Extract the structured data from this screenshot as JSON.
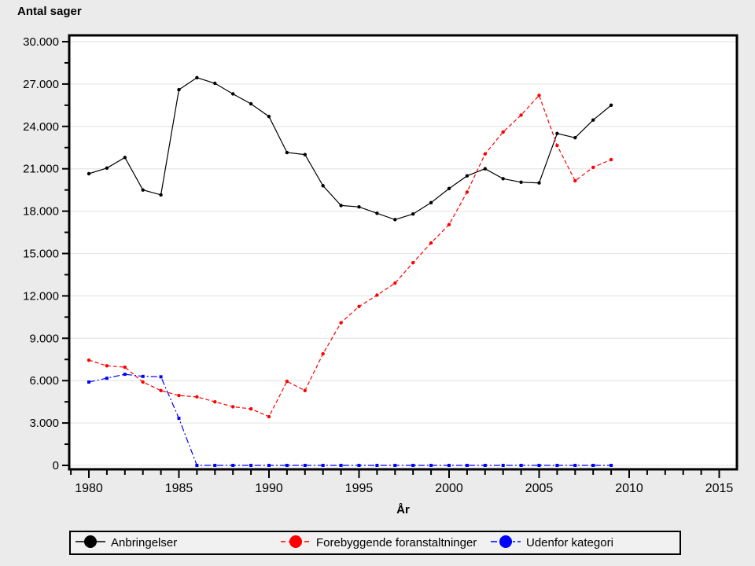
{
  "title": "Antal sager",
  "x_axis_label": "År",
  "colors": {
    "background": "#ebebeb",
    "plot_background": "#ffffff",
    "grid": "#e8e8e8",
    "frame": "#000000",
    "legend_background": "#f1f1f1",
    "series_black": "#000000",
    "series_red": "#ff0000",
    "series_blue": "#0000ff"
  },
  "legend": {
    "items": [
      {
        "label": "Anbringelser",
        "color": "#000000",
        "line_style": "solid"
      },
      {
        "label": "Forebyggende foranstaltninger",
        "color": "#ff0000",
        "line_style": "dashed"
      },
      {
        "label": "Udenfor kategori",
        "color": "#0000ff",
        "line_style": "dashdot"
      }
    ]
  },
  "chart_data": {
    "type": "line",
    "title": "Antal sager",
    "xlabel": "År",
    "ylabel": "Antal sager",
    "grid": true,
    "legend_position": "bottom",
    "x": [
      1980,
      1981,
      1982,
      1983,
      1984,
      1985,
      1986,
      1987,
      1988,
      1989,
      1990,
      1991,
      1992,
      1993,
      1994,
      1995,
      1996,
      1997,
      1998,
      1999,
      2000,
      2001,
      2002,
      2003,
      2004,
      2005,
      2006,
      2007,
      2008,
      2009
    ],
    "series": [
      {
        "name": "Anbringelser",
        "color": "#000000",
        "line_style": "solid",
        "marker": "circle",
        "values": [
          20650,
          21050,
          21800,
          19500,
          19150,
          26600,
          27450,
          27050,
          26300,
          25600,
          24700,
          22150,
          22000,
          19800,
          18400,
          18300,
          17850,
          17400,
          17800,
          18600,
          19600,
          20500,
          21000,
          20300,
          20050,
          20000,
          23500,
          23200,
          24450,
          25500
        ]
      },
      {
        "name": "Forebyggende foranstaltninger",
        "color": "#ff0000",
        "line_style": "dashed",
        "marker": "circle",
        "values": [
          7450,
          7050,
          6950,
          5900,
          5300,
          4950,
          4850,
          4500,
          4150,
          4000,
          3450,
          5950,
          5300,
          7900,
          10100,
          11250,
          12050,
          12900,
          14350,
          15750,
          17050,
          19350,
          22050,
          23600,
          24800,
          26200,
          22650,
          20150,
          21100,
          21650
        ]
      },
      {
        "name": "Udenfor kategori",
        "color": "#0000ff",
        "line_style": "dashdot",
        "marker": "square",
        "values": [
          5900,
          6170,
          6450,
          6300,
          6270,
          3330,
          0,
          0,
          0,
          0,
          0,
          0,
          0,
          0,
          0,
          0,
          0,
          0,
          0,
          0,
          0,
          0,
          0,
          0,
          0,
          0,
          0,
          0,
          0,
          0
        ]
      }
    ],
    "x_axis": {
      "range_years": [
        1979,
        2015
      ],
      "minor_tick_every": 1,
      "major_ticks": [
        1980,
        1985,
        1990,
        1995,
        2000,
        2005,
        2010,
        2015
      ],
      "tick_labels": [
        "1980",
        "1985",
        "1990",
        "1995",
        "2000",
        "2005",
        "2010",
        "2015"
      ]
    },
    "y_axis": {
      "min": 0,
      "max": 30000,
      "major_step": 3000,
      "minor_step": 1500,
      "major_ticks": [
        0,
        3000,
        6000,
        9000,
        12000,
        15000,
        18000,
        21000,
        24000,
        27000,
        30000
      ],
      "tick_labels": [
        "0",
        "3.000",
        "6.000",
        "9.000",
        "12.000",
        "15.000",
        "18.000",
        "21.000",
        "24.000",
        "27.000",
        "30.000"
      ]
    }
  }
}
